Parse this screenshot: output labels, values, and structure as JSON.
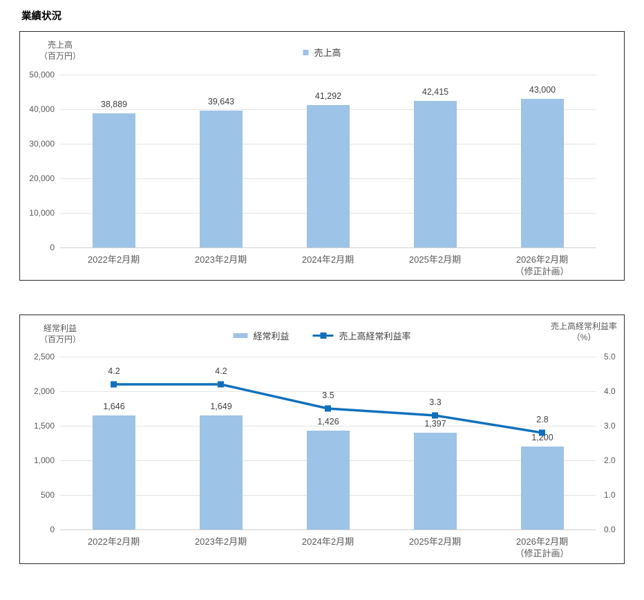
{
  "page_title": "業績状況",
  "colors": {
    "bar": "#9dc3e6",
    "line": "#0f70bc",
    "grid": "#e4e4e4",
    "axis_line": "#cfcfcf",
    "tick_label": "#595959",
    "data_label": "#3f3f3f",
    "border": "#2b2b2b",
    "legend_text": "#404040"
  },
  "chart_data": [
    {
      "type": "bar",
      "title": "",
      "categories": [
        [
          "2022年2月期"
        ],
        [
          "2023年2月期"
        ],
        [
          "2024年2月期"
        ],
        [
          "2025年2月期"
        ],
        [
          "2026年2月期",
          "（修正計画）"
        ]
      ],
      "series": [
        {
          "name": "売上高",
          "type": "bar",
          "axis": "left",
          "values": [
            38889,
            39643,
            41292,
            42415,
            43000
          ],
          "labels": [
            "38,889",
            "39,643",
            "41,292",
            "42,415",
            "43,000"
          ]
        }
      ],
      "ylabel_lines": [
        "売上高",
        "（百万円）"
      ],
      "ylim": [
        0,
        50000
      ],
      "y_ticks": [
        "50,000",
        "40,000",
        "30,000",
        "20,000",
        "10,000",
        "0"
      ],
      "grid": true,
      "legend_position": "top-center"
    },
    {
      "type": "bar+line",
      "title": "",
      "categories": [
        [
          "2022年2月期"
        ],
        [
          "2023年2月期"
        ],
        [
          "2024年2月期"
        ],
        [
          "2025年2月期"
        ],
        [
          "2026年2月期",
          "（修正計画）"
        ]
      ],
      "series": [
        {
          "name": "経常利益",
          "type": "bar",
          "axis": "left",
          "values": [
            1646,
            1649,
            1426,
            1397,
            1200
          ],
          "labels": [
            "1,646",
            "1,649",
            "1,426",
            "1,397",
            "1,200"
          ]
        },
        {
          "name": "売上高経常利益率",
          "type": "line",
          "axis": "right",
          "values": [
            4.2,
            4.2,
            3.5,
            3.3,
            2.8
          ],
          "labels": [
            "4.2",
            "4.2",
            "3.5",
            "3.3",
            "2.8"
          ]
        }
      ],
      "ylabel_left_lines": [
        "経常利益",
        "（百万円）"
      ],
      "ylabel_right_lines": [
        "売上高経常利益率",
        "（%）"
      ],
      "ylim_left": [
        0,
        2500
      ],
      "ylim_right": [
        0,
        5.0
      ],
      "y_ticks_left": [
        "2,500",
        "2,000",
        "1,500",
        "1,000",
        "500",
        "0"
      ],
      "y_ticks_right": [
        "5.0",
        "4.0",
        "3.0",
        "2.0",
        "1.0",
        "0.0"
      ],
      "grid": true,
      "legend_position": "top-center"
    }
  ]
}
